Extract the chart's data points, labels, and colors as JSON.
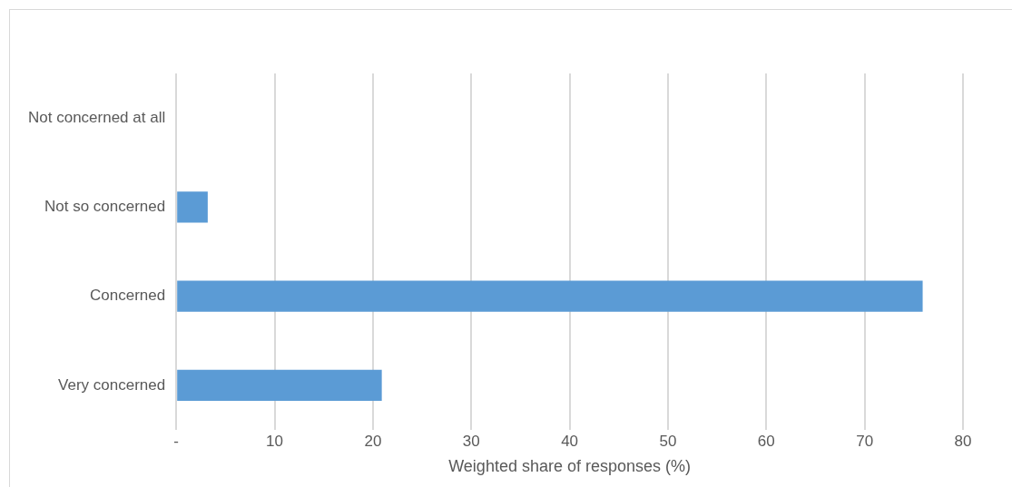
{
  "chart_data": {
    "type": "bar",
    "orientation": "horizontal",
    "categories": [
      "Not concerned at all",
      "Not so concerned",
      "Concerned",
      "Very concerned"
    ],
    "values": [
      0,
      3.2,
      75.9,
      20.9
    ],
    "color": "#5b9bd5",
    "xlabel": "Weighted share of responses (%)",
    "xlim": [
      0,
      80
    ],
    "xticks": [
      {
        "value": 0,
        "label": "-"
      },
      10,
      20,
      30,
      40,
      50,
      60,
      70,
      80
    ],
    "grid": "x",
    "legend": false
  }
}
